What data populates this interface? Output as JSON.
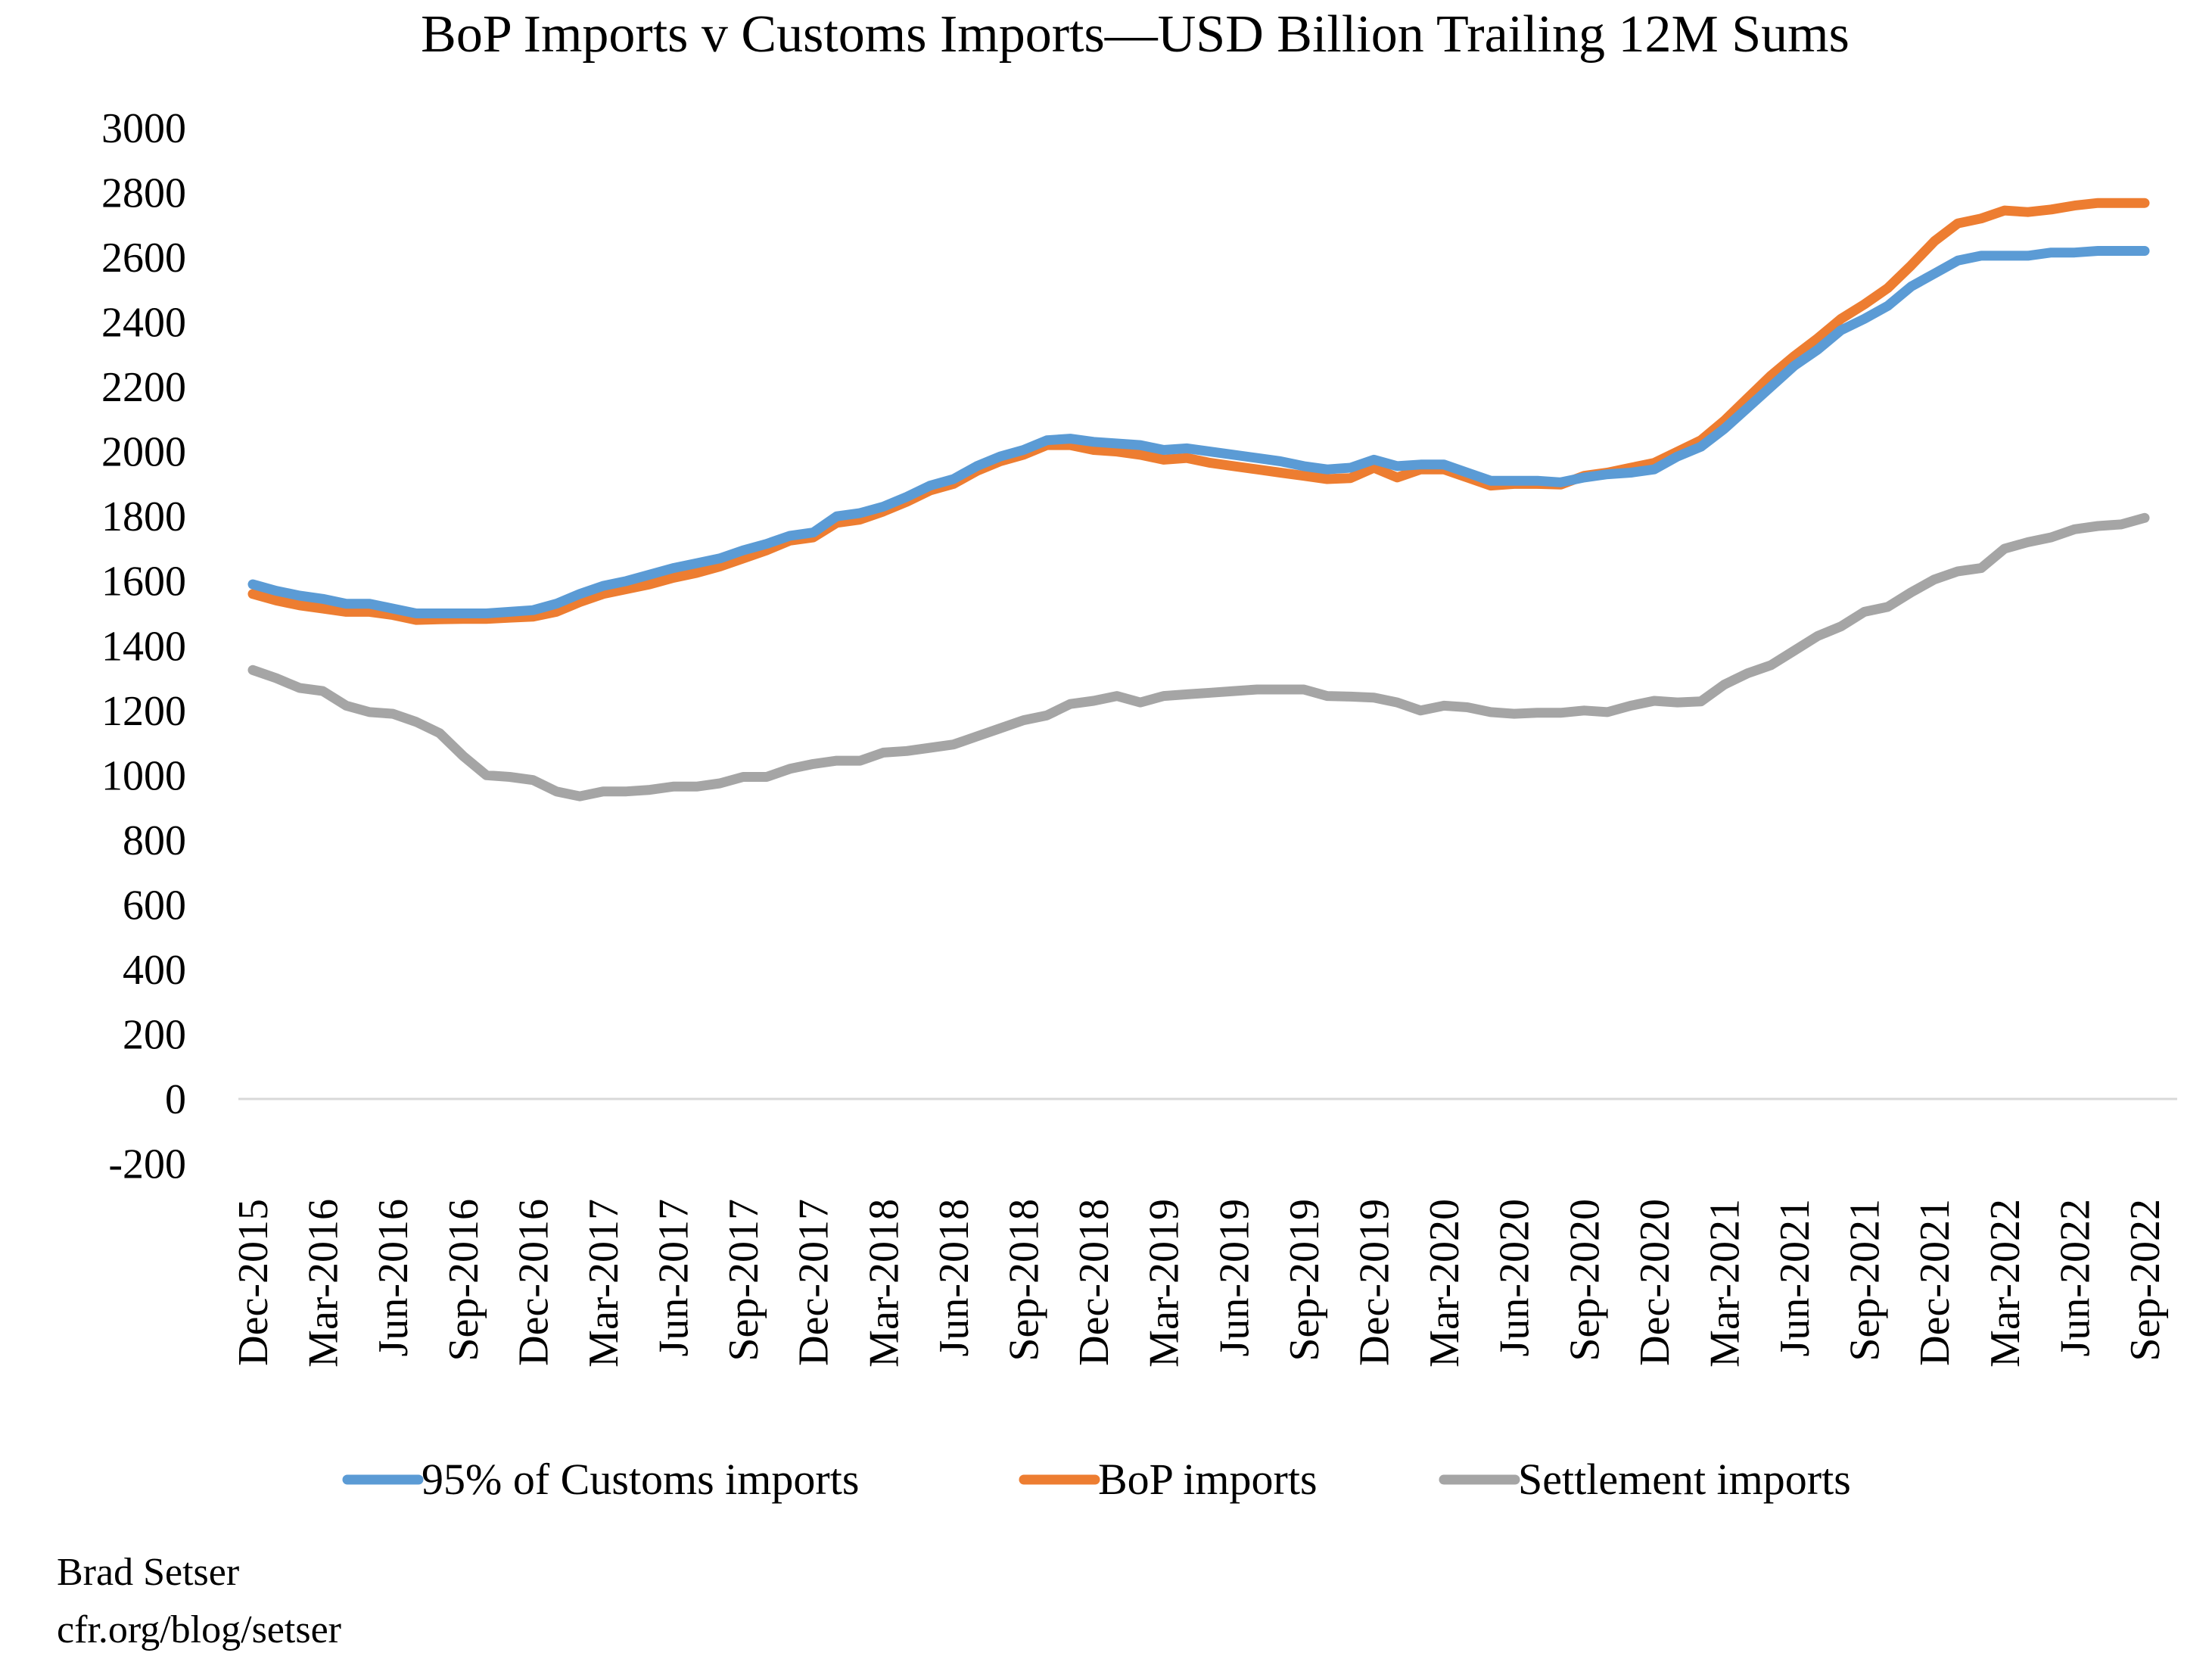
{
  "chart_data": {
    "type": "line",
    "title": "BoP Imports v Customs Imports—USD Billion Trailing 12M Sums",
    "xlabel": "",
    "ylabel": "",
    "ylim": [
      -200,
      3000
    ],
    "yticks": [
      "3000",
      "2800",
      "2600",
      "2400",
      "2200",
      "2000",
      "1800",
      "1600",
      "1400",
      "1200",
      "1000",
      "800",
      "600",
      "400",
      "200",
      "0",
      "-200"
    ],
    "ytick_values": [
      3000,
      2800,
      2600,
      2400,
      2200,
      2000,
      1800,
      1600,
      1400,
      1200,
      1000,
      800,
      600,
      400,
      200,
      0,
      -200
    ],
    "x_start": "Dec-2015",
    "x_end": "Sep-2022",
    "x_frequency": "monthly",
    "xtick_labels": [
      "Dec-2015",
      "Mar-2016",
      "Jun-2016",
      "Sep-2016",
      "Dec-2016",
      "Mar-2017",
      "Jun-2017",
      "Sep-2017",
      "Dec-2017",
      "Mar-2018",
      "Jun-2018",
      "Sep-2018",
      "Dec-2018",
      "Mar-2019",
      "Jun-2019",
      "Sep-2019",
      "Dec-2019",
      "Mar-2020",
      "Jun-2020",
      "Sep-2020",
      "Dec-2020",
      "Mar-2021",
      "Jun-2021",
      "Sep-2021",
      "Dec-2021",
      "Mar-2022",
      "Jun-2022",
      "Sep-2022"
    ],
    "grid": false,
    "legend_position": "bottom",
    "series": [
      {
        "name": "95% of Customs imports",
        "color": "#5B9BD5",
        "values": [
          1590,
          1570,
          1555,
          1545,
          1530,
          1530,
          1515,
          1500,
          1500,
          1500,
          1500,
          1505,
          1510,
          1530,
          1560,
          1585,
          1600,
          1620,
          1640,
          1655,
          1670,
          1695,
          1715,
          1740,
          1750,
          1800,
          1810,
          1830,
          1860,
          1895,
          1915,
          1955,
          1985,
          2005,
          2035,
          2040,
          2030,
          2025,
          2020,
          2005,
          2010,
          2000,
          1990,
          1980,
          1970,
          1955,
          1945,
          1950,
          1975,
          1955,
          1960,
          1960,
          1935,
          1910,
          1910,
          1910,
          1905,
          1920,
          1930,
          1935,
          1945,
          1985,
          2015,
          2070,
          2135,
          2200,
          2265,
          2315,
          2375,
          2410,
          2450,
          2510,
          2550,
          2590,
          2605,
          2605,
          2605,
          2615,
          2615,
          2620,
          2620,
          2620
        ]
      },
      {
        "name": "BoP imports",
        "color": "#ED7D31",
        "values": [
          1560,
          1540,
          1525,
          1515,
          1505,
          1505,
          1495,
          1480,
          1482,
          1483,
          1483,
          1487,
          1490,
          1505,
          1535,
          1560,
          1575,
          1590,
          1610,
          1625,
          1645,
          1670,
          1695,
          1725,
          1735,
          1780,
          1790,
          1815,
          1845,
          1880,
          1900,
          1940,
          1970,
          1990,
          2020,
          2020,
          2005,
          2000,
          1990,
          1975,
          1980,
          1965,
          1955,
          1945,
          1935,
          1925,
          1915,
          1918,
          1950,
          1920,
          1945,
          1945,
          1920,
          1895,
          1900,
          1900,
          1898,
          1925,
          1935,
          1950,
          1965,
          2000,
          2035,
          2095,
          2165,
          2235,
          2295,
          2350,
          2410,
          2455,
          2505,
          2575,
          2650,
          2705,
          2720,
          2745,
          2740,
          2748,
          2760,
          2768,
          2768,
          2768
        ]
      },
      {
        "name": "Settlement imports",
        "color": "#A5A5A5",
        "values": [
          1325,
          1300,
          1270,
          1260,
          1215,
          1195,
          1190,
          1165,
          1130,
          1060,
          1000,
          995,
          985,
          950,
          935,
          950,
          950,
          955,
          965,
          965,
          975,
          995,
          995,
          1020,
          1035,
          1045,
          1045,
          1070,
          1075,
          1085,
          1095,
          1120,
          1145,
          1170,
          1185,
          1220,
          1230,
          1245,
          1225,
          1245,
          1250,
          1255,
          1260,
          1265,
          1265,
          1265,
          1245,
          1243,
          1240,
          1225,
          1200,
          1215,
          1210,
          1195,
          1190,
          1193,
          1193,
          1200,
          1195,
          1215,
          1230,
          1225,
          1228,
          1280,
          1315,
          1340,
          1385,
          1430,
          1460,
          1505,
          1520,
          1565,
          1605,
          1630,
          1640,
          1700,
          1720,
          1735,
          1760,
          1770,
          1775,
          1795
        ]
      }
    ]
  },
  "footer": {
    "author": "Brad Setser",
    "source": "cfr.org/blog/setser"
  }
}
